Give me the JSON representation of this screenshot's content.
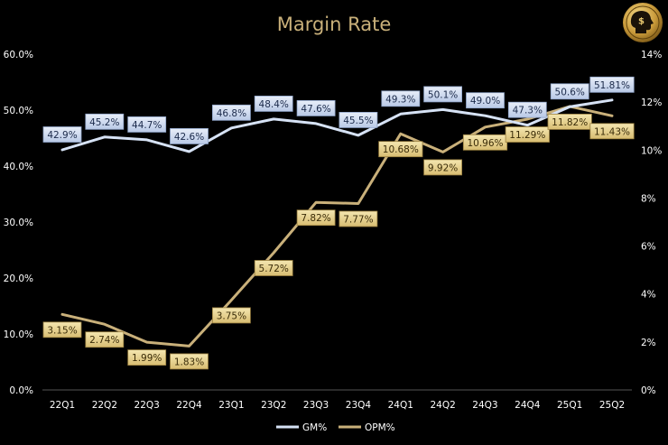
{
  "chart_data": {
    "type": "line",
    "title": "Margin Rate",
    "categories": [
      "22Q1",
      "22Q2",
      "22Q3",
      "22Q4",
      "23Q1",
      "23Q2",
      "23Q3",
      "23Q4",
      "24Q1",
      "24Q2",
      "24Q3",
      "24Q4",
      "25Q1",
      "25Q2"
    ],
    "y_left": {
      "range": [
        0,
        60
      ],
      "ticks": [
        "0.0%",
        "10.0%",
        "20.0%",
        "30.0%",
        "40.0%",
        "50.0%",
        "60.0%"
      ]
    },
    "y_right": {
      "range": [
        0,
        14
      ],
      "ticks": [
        "0%",
        "2%",
        "4%",
        "6%",
        "8%",
        "10%",
        "12%",
        "14%"
      ]
    },
    "series": [
      {
        "name": "GM%",
        "axis": "left",
        "color": "#d6e2f5",
        "values": [
          42.9,
          45.2,
          44.7,
          42.6,
          46.8,
          48.4,
          47.6,
          45.5,
          49.3,
          50.1,
          49.0,
          47.3,
          50.6,
          51.81
        ],
        "labels": [
          "42.9%",
          "45.2%",
          "44.7%",
          "42.6%",
          "46.8%",
          "48.4%",
          "47.6%",
          "45.5%",
          "49.3%",
          "50.1%",
          "49.0%",
          "47.3%",
          "50.6%",
          "51.81%"
        ]
      },
      {
        "name": "OPM%",
        "axis": "right",
        "color": "#c9b07a",
        "values": [
          3.15,
          2.74,
          1.99,
          1.83,
          3.75,
          5.72,
          7.82,
          7.77,
          10.68,
          9.92,
          10.96,
          11.29,
          11.82,
          11.43
        ],
        "labels": [
          "3.15%",
          "2.74%",
          "1.99%",
          "1.83%",
          "3.75%",
          "5.72%",
          "7.82%",
          "7.77%",
          "10.68%",
          "9.92%",
          "10.96%",
          "11.29%",
          "11.82%",
          "11.43%"
        ]
      }
    ],
    "legend": "bottom-center",
    "grid": false
  },
  "logo": {
    "symbol": "$",
    "name": "head-dollar-logo"
  }
}
